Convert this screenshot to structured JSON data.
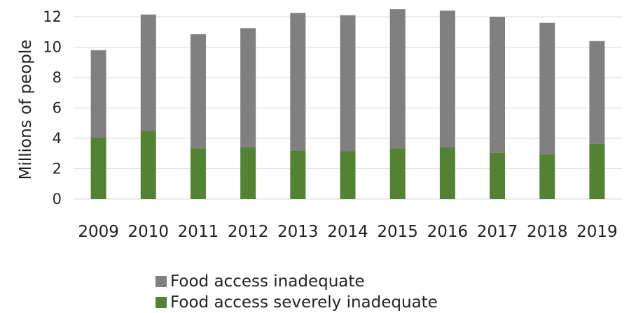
{
  "chart_data": {
    "type": "bar",
    "stacked": true,
    "title": "",
    "xlabel": "",
    "ylabel": "Millions of people",
    "ylim": [
      0,
      12
    ],
    "yticks": [
      0,
      2,
      4,
      6,
      8,
      10,
      12
    ],
    "grid": true,
    "legend_position": "bottom",
    "categories": [
      "2009",
      "2010",
      "2011",
      "2012",
      "2013",
      "2014",
      "2015",
      "2016",
      "2017",
      "2018",
      "2019"
    ],
    "series": [
      {
        "name": "Food access severely inadequate",
        "color": "#548235",
        "values": [
          4.05,
          4.5,
          3.35,
          3.4,
          3.2,
          3.15,
          3.35,
          3.4,
          3.05,
          2.95,
          3.65
        ]
      },
      {
        "name": "Food access inadequate",
        "color": "#808080",
        "values": [
          5.75,
          7.65,
          7.5,
          7.85,
          9.05,
          8.95,
          9.15,
          9.0,
          8.95,
          8.65,
          6.75
        ]
      }
    ],
    "legend_order": [
      1,
      0
    ]
  }
}
